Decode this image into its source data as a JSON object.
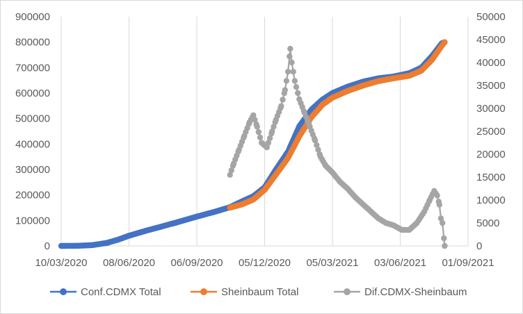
{
  "chart_data": {
    "type": "line",
    "title": "",
    "xlabel": "",
    "ylabel": "",
    "x_tick_labels": [
      "10/03/2020",
      "08/06/2020",
      "06/09/2020",
      "05/12/2020",
      "05/03/2021",
      "03/06/2021",
      "01/09/2021"
    ],
    "x_tick_dates": [
      "2020-03-10",
      "2020-06-08",
      "2020-09-06",
      "2020-12-05",
      "2021-03-05",
      "2021-06-03",
      "2021-09-01"
    ],
    "y_left_ticks": [
      "0",
      "100000",
      "200000",
      "300000",
      "400000",
      "500000",
      "600000",
      "700000",
      "800000",
      "900000"
    ],
    "y_left_lim": [
      0,
      900000
    ],
    "y_right_ticks": [
      "0",
      "5000",
      "10000",
      "15000",
      "20000",
      "25000",
      "30000",
      "35000",
      "40000",
      "45000",
      "50000"
    ],
    "y_right_lim": [
      0,
      50000
    ],
    "grid": "vertical",
    "legend_position": "bottom",
    "series": [
      {
        "name": "Conf.CDMX Total",
        "axis": "left",
        "color": "#4472c4",
        "points": [
          [
            "2020-03-10",
            0
          ],
          [
            "2020-04-01",
            500
          ],
          [
            "2020-04-20",
            3000
          ],
          [
            "2020-05-10",
            12000
          ],
          [
            "2020-05-25",
            25000
          ],
          [
            "2020-06-08",
            40000
          ],
          [
            "2020-07-01",
            60000
          ],
          [
            "2020-07-20",
            75000
          ],
          [
            "2020-08-10",
            92000
          ],
          [
            "2020-09-06",
            115000
          ],
          [
            "2020-10-01",
            135000
          ],
          [
            "2020-10-20",
            152000
          ],
          [
            "2020-11-05",
            175000
          ],
          [
            "2020-11-20",
            195000
          ],
          [
            "2020-12-05",
            230000
          ],
          [
            "2020-12-20",
            300000
          ],
          [
            "2021-01-05",
            370000
          ],
          [
            "2021-01-20",
            470000
          ],
          [
            "2021-02-05",
            535000
          ],
          [
            "2021-02-20",
            575000
          ],
          [
            "2021-03-05",
            600000
          ],
          [
            "2021-03-25",
            625000
          ],
          [
            "2021-04-15",
            645000
          ],
          [
            "2021-05-05",
            658000
          ],
          [
            "2021-05-25",
            665000
          ],
          [
            "2021-06-15",
            678000
          ],
          [
            "2021-07-01",
            700000
          ],
          [
            "2021-07-15",
            745000
          ],
          [
            "2021-07-28",
            795000
          ],
          [
            "2021-08-01",
            800000
          ]
        ]
      },
      {
        "name": "Sheinbaum Total",
        "axis": "left",
        "color": "#ed7d31",
        "points": [
          [
            "2020-10-20",
            150000
          ],
          [
            "2020-11-05",
            163000
          ],
          [
            "2020-11-20",
            182000
          ],
          [
            "2020-12-05",
            220000
          ],
          [
            "2020-12-20",
            280000
          ],
          [
            "2021-01-05",
            345000
          ],
          [
            "2021-01-20",
            430000
          ],
          [
            "2021-02-05",
            505000
          ],
          [
            "2021-02-20",
            555000
          ],
          [
            "2021-03-05",
            582000
          ],
          [
            "2021-03-25",
            608000
          ],
          [
            "2021-04-15",
            630000
          ],
          [
            "2021-05-05",
            647000
          ],
          [
            "2021-05-25",
            658000
          ],
          [
            "2021-06-15",
            668000
          ],
          [
            "2021-07-01",
            688000
          ],
          [
            "2021-07-15",
            730000
          ],
          [
            "2021-07-28",
            785000
          ],
          [
            "2021-08-01",
            800000
          ]
        ]
      },
      {
        "name": "Dif.CDMX-Sheinbaum",
        "axis": "right",
        "color": "#a5a5a5",
        "points": [
          [
            "2020-10-20",
            15500
          ],
          [
            "2020-10-25",
            18000
          ],
          [
            "2020-11-01",
            21000
          ],
          [
            "2020-11-08",
            24000
          ],
          [
            "2020-11-15",
            27000
          ],
          [
            "2020-11-20",
            28500
          ],
          [
            "2020-11-25",
            26000
          ],
          [
            "2020-12-01",
            22500
          ],
          [
            "2020-12-08",
            21500
          ],
          [
            "2020-12-15",
            25000
          ],
          [
            "2020-12-20",
            27500
          ],
          [
            "2020-12-27",
            30500
          ],
          [
            "2021-01-01",
            34000
          ],
          [
            "2021-01-05",
            38000
          ],
          [
            "2021-01-08",
            43000
          ],
          [
            "2021-01-10",
            40000
          ],
          [
            "2021-01-14",
            36000
          ],
          [
            "2021-01-20",
            32000
          ],
          [
            "2021-01-27",
            29000
          ],
          [
            "2021-02-03",
            26000
          ],
          [
            "2021-02-10",
            23000
          ],
          [
            "2021-02-17",
            19500
          ],
          [
            "2021-02-24",
            17500
          ],
          [
            "2021-03-05",
            16000
          ],
          [
            "2021-03-15",
            14000
          ],
          [
            "2021-03-25",
            12500
          ],
          [
            "2021-04-05",
            10500
          ],
          [
            "2021-04-15",
            9000
          ],
          [
            "2021-04-25",
            7500
          ],
          [
            "2021-05-05",
            6000
          ],
          [
            "2021-05-15",
            5000
          ],
          [
            "2021-05-25",
            4500
          ],
          [
            "2021-06-05",
            3500
          ],
          [
            "2021-06-15",
            3500
          ],
          [
            "2021-06-25",
            5000
          ],
          [
            "2021-07-05",
            7500
          ],
          [
            "2021-07-12",
            10000
          ],
          [
            "2021-07-18",
            12000
          ],
          [
            "2021-07-22",
            11000
          ],
          [
            "2021-07-25",
            9000
          ],
          [
            "2021-07-27",
            6000
          ],
          [
            "2021-07-29",
            5000
          ],
          [
            "2021-08-01",
            0
          ]
        ]
      }
    ]
  }
}
